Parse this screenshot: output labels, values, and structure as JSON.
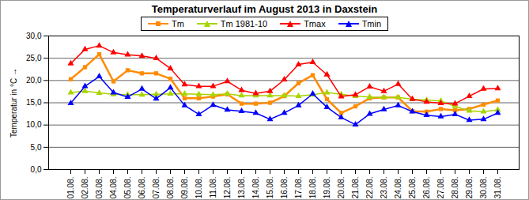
{
  "chart_data": {
    "type": "line",
    "title": "Temperaturverlauf im August 2013 in Daxstein",
    "y_label": "Temperatur in °C",
    "categories": [
      "01.08.",
      "02.08.",
      "03.08.",
      "04.08.",
      "05.08.",
      "06.08.",
      "07.08.",
      "08.08.",
      "09.08.",
      "10.08.",
      "11.08.",
      "12.08.",
      "13.08.",
      "14.08.",
      "15.08.",
      "16.08.",
      "17.08.",
      "18.08.",
      "19.08.",
      "20.08.",
      "21.08.",
      "22.08.",
      "23.08.",
      "24.08.",
      "25.08.",
      "26.08.",
      "27.08.",
      "28.08.",
      "29.08.",
      "30.08.",
      "31.08."
    ],
    "series": [
      {
        "name": "Tm",
        "color": "#ff8c00",
        "marker": "square",
        "values": [
          20.3,
          23.0,
          25.9,
          19.8,
          22.3,
          21.6,
          21.6,
          20.4,
          16.0,
          16.0,
          16.4,
          16.9,
          14.8,
          14.8,
          15.0,
          16.5,
          19.4,
          21.2,
          15.8,
          12.7,
          14.2,
          16.0,
          16.2,
          16.2,
          13.1,
          13.0,
          13.6,
          13.3,
          13.6,
          14.6,
          15.5
        ]
      },
      {
        "name": "Tm 1981-10",
        "color": "#a8d400",
        "marker": "triangle",
        "values": [
          17.3,
          17.6,
          17.2,
          16.9,
          16.8,
          16.8,
          16.9,
          17.0,
          17.0,
          16.9,
          16.8,
          17.0,
          16.6,
          16.6,
          16.6,
          16.6,
          16.5,
          16.8,
          17.3,
          16.9,
          16.5,
          16.3,
          16.2,
          16.2,
          15.8,
          15.6,
          15.4,
          14.2,
          13.2,
          13.0,
          13.4
        ]
      },
      {
        "name": "Tmax",
        "color": "#ff0000",
        "marker": "triangle",
        "values": [
          23.8,
          27.0,
          27.8,
          26.3,
          25.8,
          25.5,
          25.0,
          22.7,
          19.1,
          18.7,
          18.7,
          19.8,
          17.8,
          17.1,
          17.6,
          20.2,
          23.6,
          24.1,
          21.3,
          16.4,
          16.8,
          18.6,
          17.6,
          19.2,
          15.8,
          15.2,
          14.9,
          14.8,
          16.5,
          18.1,
          18.2
        ]
      },
      {
        "name": "Tmin",
        "color": "#0000ff",
        "marker": "triangle",
        "values": [
          14.9,
          18.7,
          20.9,
          17.3,
          16.3,
          18.1,
          15.9,
          18.4,
          14.4,
          12.4,
          14.5,
          13.4,
          13.1,
          12.7,
          11.3,
          12.7,
          14.4,
          17.0,
          14.0,
          11.7,
          10.1,
          12.5,
          13.5,
          14.4,
          13.0,
          12.2,
          11.9,
          12.4,
          11.1,
          11.3,
          12.7
        ]
      }
    ],
    "ylim": [
      0,
      30
    ],
    "yticks": [
      {
        "value": 0,
        "label": "0,0"
      },
      {
        "value": 5,
        "label": "5,0"
      },
      {
        "value": 10,
        "label": "10,0"
      },
      {
        "value": 15,
        "label": "15,0"
      },
      {
        "value": 20,
        "label": "20,0"
      },
      {
        "value": 25,
        "label": "25,0"
      },
      {
        "value": 30,
        "label": "30,0"
      }
    ],
    "grid": true,
    "legend": "top"
  }
}
